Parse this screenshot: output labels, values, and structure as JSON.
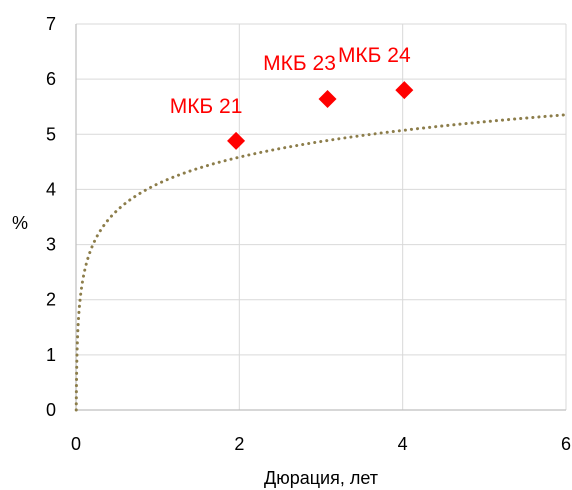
{
  "chart_data": {
    "type": "scatter",
    "xlabel": "Дюрация, лет",
    "ylabel": "%",
    "xlim": [
      0,
      6
    ],
    "ylim": [
      0,
      7
    ],
    "x_ticks": [
      0,
      2,
      4,
      6
    ],
    "y_ticks": [
      0,
      1,
      2,
      3,
      4,
      5,
      6,
      7
    ],
    "grid": "vertical and horizontal",
    "series": [
      {
        "type": "scatter",
        "marker": "diamond",
        "color": "#ff0000",
        "points": [
          {
            "x": 1.96,
            "y": 4.88,
            "label": "МКБ 21"
          },
          {
            "x": 3.08,
            "y": 5.64,
            "label": "МКБ 23"
          },
          {
            "x": 4.02,
            "y": 5.8,
            "label": "МКБ 24"
          }
        ]
      },
      {
        "type": "trendline",
        "style": "dotted",
        "color": "#8c7d4a",
        "model": "logarithmic",
        "coefficients": {
          "a": 4.1,
          "b": 0.7
        }
      }
    ]
  }
}
